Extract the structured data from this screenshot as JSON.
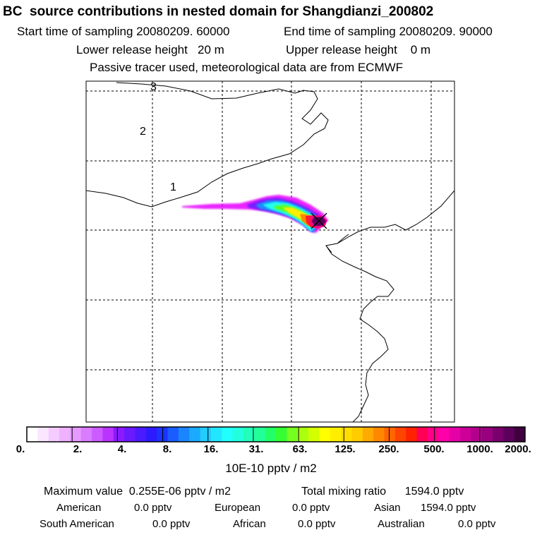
{
  "header": {
    "title": "BC  source contributions in nested domain for Shangdianzi_200802",
    "start_time": "Start time of sampling 20080209. 60000",
    "end_time": "End time of sampling 20080209. 90000",
    "lower_release": "Lower release height   20 m",
    "upper_release": "Upper release height    0 m",
    "tracer_note": "Passive tracer used, meteorological data are from ECMWF"
  },
  "map": {
    "contour_labels": [
      "3",
      "2",
      "1"
    ],
    "receptor_marker": "x-marker"
  },
  "colorbar": {
    "tick_labels": [
      "0.",
      "2.",
      "4.",
      "8.",
      "16.",
      "31.",
      "63.",
      "125.",
      "250.",
      "500.",
      "1000.",
      "2000."
    ],
    "units": "10E-10 pptv / m2",
    "colors": [
      "#ffffff",
      "#fbe6ff",
      "#f5ccff",
      "#eeb2ff",
      "#e699ff",
      "#d97cff",
      "#cc5cff",
      "#bb33ff",
      "#8c1aff",
      "#6a1aff",
      "#4b1aff",
      "#2d1aff",
      "#1a33ff",
      "#1a5cff",
      "#1a85ff",
      "#1aaaff",
      "#22ccff",
      "#22e6ff",
      "#22ffff",
      "#22ffdd",
      "#22ffbb",
      "#22ff99",
      "#22ff66",
      "#33ff33",
      "#77ff22",
      "#aaff11",
      "#d4ff00",
      "#ffff00",
      "#ffee00",
      "#ffdd00",
      "#ffcc00",
      "#ffaa00",
      "#ff8800",
      "#ff6600",
      "#ff4400",
      "#ff2200",
      "#ff0055",
      "#ff0088",
      "#ff00aa",
      "#e600a8",
      "#cc0099",
      "#b3008c",
      "#990080",
      "#7a006e",
      "#5c005c",
      "#400040"
    ]
  },
  "footer": {
    "max_value": "Maximum value  0.255E-06 pptv / m2",
    "total_mixing": "Total mixing ratio      1594.0 pptv",
    "regions": [
      {
        "name": "American",
        "value": "0.0 pptv"
      },
      {
        "name": "European",
        "value": "0.0 pptv"
      },
      {
        "name": "Asian",
        "value": "1594.0 pptv"
      },
      {
        "name": "South American",
        "value": "0.0 pptv"
      },
      {
        "name": "African",
        "value": "0.0 pptv"
      },
      {
        "name": "Australian",
        "value": "0.0 pptv"
      }
    ]
  }
}
